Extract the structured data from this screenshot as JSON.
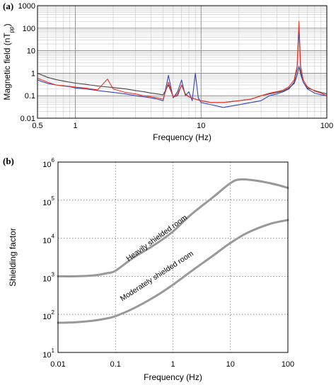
{
  "chart_data": [
    {
      "panel_label": "(a)",
      "type": "line",
      "xlabel": "Frequency (Hz)",
      "ylabel_main": "Magnetic field (nT",
      "ylabel_sub": "pp",
      "ylabel_end": ")",
      "xscale": "log",
      "yscale": "log",
      "xlim": [
        0.5,
        100
      ],
      "ylim": [
        0.01,
        1000
      ],
      "x_ticks": [
        {
          "value": 0.5,
          "label": "0.5"
        },
        {
          "value": 1,
          "label": "1"
        },
        {
          "value": 10,
          "label": "10"
        },
        {
          "value": 100,
          "label": "100"
        }
      ],
      "y_ticks": [
        {
          "value": 0.01,
          "label": "0.01"
        },
        {
          "value": 0.1,
          "label": "0.1"
        },
        {
          "value": 1,
          "label": "1"
        },
        {
          "value": 10,
          "label": "10"
        },
        {
          "value": 100,
          "label": "100"
        },
        {
          "value": 1000,
          "label": "1000"
        }
      ],
      "grid": true,
      "series": [
        {
          "color": "#444444",
          "points": [
            [
              0.5,
              1.0
            ],
            [
              0.6,
              0.65
            ],
            [
              0.7,
              0.52
            ],
            [
              0.8,
              0.45
            ],
            [
              0.9,
              0.4
            ],
            [
              1.0,
              0.36
            ],
            [
              1.2,
              0.32
            ],
            [
              1.5,
              0.27
            ],
            [
              2.0,
              0.23
            ],
            [
              2.5,
              0.2
            ],
            [
              3.0,
              0.17
            ],
            [
              3.5,
              0.15
            ],
            [
              4.0,
              0.13
            ],
            [
              4.5,
              0.12
            ],
            [
              5.0,
              0.11
            ],
            [
              5.5,
              0.3
            ],
            [
              6.0,
              0.09
            ],
            [
              6.5,
              0.1
            ],
            [
              7.0,
              0.3
            ],
            [
              7.5,
              0.12
            ],
            [
              8.0,
              0.09
            ],
            [
              9.0,
              0.07
            ],
            [
              10,
              0.06
            ],
            [
              12,
              0.05
            ],
            [
              15,
              0.05
            ],
            [
              20,
              0.06
            ],
            [
              25,
              0.07
            ],
            [
              30,
              0.1
            ],
            [
              35,
              0.12
            ],
            [
              40,
              0.14
            ],
            [
              45,
              0.16
            ],
            [
              50,
              0.22
            ],
            [
              55,
              0.35
            ],
            [
              58,
              0.8
            ],
            [
              60,
              2.0
            ],
            [
              62,
              0.9
            ],
            [
              65,
              0.4
            ],
            [
              70,
              0.22
            ],
            [
              80,
              0.17
            ],
            [
              90,
              0.14
            ],
            [
              100,
              0.12
            ]
          ]
        },
        {
          "color": "#3344bb",
          "points": [
            [
              0.5,
              0.5
            ],
            [
              0.6,
              0.35
            ],
            [
              0.7,
              0.3
            ],
            [
              0.8,
              0.27
            ],
            [
              0.9,
              0.25
            ],
            [
              1.0,
              0.22
            ],
            [
              1.2,
              0.2
            ],
            [
              1.5,
              0.17
            ],
            [
              2.0,
              0.14
            ],
            [
              2.5,
              0.12
            ],
            [
              3.0,
              0.1
            ],
            [
              3.5,
              0.09
            ],
            [
              4.0,
              0.08
            ],
            [
              4.5,
              0.07
            ],
            [
              5.0,
              0.06
            ],
            [
              5.5,
              0.8
            ],
            [
              6.0,
              0.08
            ],
            [
              6.5,
              0.15
            ],
            [
              7.0,
              0.5
            ],
            [
              7.5,
              0.1
            ],
            [
              8.0,
              0.15
            ],
            [
              8.5,
              0.06
            ],
            [
              9.0,
              1.0
            ],
            [
              9.5,
              0.08
            ],
            [
              10,
              0.05
            ],
            [
              12,
              0.04
            ],
            [
              15,
              0.03
            ],
            [
              20,
              0.04
            ],
            [
              25,
              0.05
            ],
            [
              30,
              0.06
            ],
            [
              35,
              0.1
            ],
            [
              40,
              0.12
            ],
            [
              45,
              0.15
            ],
            [
              50,
              0.2
            ],
            [
              55,
              0.4
            ],
            [
              58,
              1.5
            ],
            [
              60,
              100
            ],
            [
              62,
              1.2
            ],
            [
              65,
              0.4
            ],
            [
              70,
              0.2
            ],
            [
              80,
              0.13
            ],
            [
              90,
              0.11
            ],
            [
              100,
              0.1
            ]
          ]
        },
        {
          "color": "#ee3322",
          "points": [
            [
              0.5,
              0.6
            ],
            [
              0.6,
              0.4
            ],
            [
              0.7,
              0.3
            ],
            [
              0.8,
              0.28
            ],
            [
              0.9,
              0.26
            ],
            [
              1.0,
              0.24
            ],
            [
              1.2,
              0.22
            ],
            [
              1.5,
              0.18
            ],
            [
              1.8,
              0.55
            ],
            [
              2.0,
              0.2
            ],
            [
              2.5,
              0.14
            ],
            [
              3.0,
              0.12
            ],
            [
              3.5,
              0.1
            ],
            [
              4.0,
              0.09
            ],
            [
              4.5,
              0.08
            ],
            [
              5.0,
              0.07
            ],
            [
              5.5,
              0.4
            ],
            [
              6.0,
              0.09
            ],
            [
              6.5,
              0.12
            ],
            [
              7.0,
              0.3
            ],
            [
              7.5,
              0.11
            ],
            [
              8.0,
              0.09
            ],
            [
              9.0,
              0.07
            ],
            [
              10,
              0.06
            ],
            [
              12,
              0.05
            ],
            [
              15,
              0.05
            ],
            [
              20,
              0.06
            ],
            [
              25,
              0.07
            ],
            [
              30,
              0.1
            ],
            [
              35,
              0.13
            ],
            [
              40,
              0.15
            ],
            [
              45,
              0.18
            ],
            [
              50,
              0.25
            ],
            [
              55,
              0.5
            ],
            [
              58,
              2.0
            ],
            [
              60,
              200
            ],
            [
              62,
              2.0
            ],
            [
              65,
              0.5
            ],
            [
              70,
              0.25
            ],
            [
              80,
              0.16
            ],
            [
              90,
              0.13
            ],
            [
              100,
              0.1
            ]
          ]
        }
      ]
    },
    {
      "panel_label": "(b)",
      "type": "line",
      "xlabel": "Frequency (Hz)",
      "ylabel": "Shielding factor",
      "xscale": "log",
      "yscale": "log",
      "xlim": [
        0.01,
        100
      ],
      "ylim": [
        10,
        1000000
      ],
      "x_ticks": [
        {
          "value": 0.01,
          "label": "0.01"
        },
        {
          "value": 0.1,
          "label": "0.1"
        },
        {
          "value": 1,
          "label": "1"
        },
        {
          "value": 10,
          "label": "10"
        },
        {
          "value": 100,
          "label": "100"
        }
      ],
      "y_ticks": [
        {
          "value": 10,
          "base": "10",
          "exp": "1"
        },
        {
          "value": 100,
          "base": "10",
          "exp": "2"
        },
        {
          "value": 1000,
          "base": "10",
          "exp": "3"
        },
        {
          "value": 10000,
          "base": "10",
          "exp": "4"
        },
        {
          "value": 100000,
          "base": "10",
          "exp": "5"
        },
        {
          "value": 1000000,
          "base": "10",
          "exp": "6"
        }
      ],
      "grid": "dotted",
      "series": [
        {
          "color": "#999999",
          "points": [
            [
              0.01,
              1000
            ],
            [
              0.02,
              1000
            ],
            [
              0.04,
              1050
            ],
            [
              0.07,
              1200
            ],
            [
              0.1,
              1400
            ],
            [
              0.2,
              3000
            ],
            [
              0.5,
              7000
            ],
            [
              1,
              15000
            ],
            [
              2,
              40000
            ],
            [
              5,
              120000
            ],
            [
              10,
              280000
            ],
            [
              15,
              350000
            ],
            [
              30,
              320000
            ],
            [
              60,
              260000
            ],
            [
              100,
              210000
            ]
          ]
        },
        {
          "color": "#999999",
          "points": [
            [
              0.01,
              60
            ],
            [
              0.02,
              62
            ],
            [
              0.04,
              68
            ],
            [
              0.07,
              78
            ],
            [
              0.1,
              90
            ],
            [
              0.2,
              140
            ],
            [
              0.5,
              300
            ],
            [
              1,
              600
            ],
            [
              2,
              1300
            ],
            [
              5,
              3500
            ],
            [
              10,
              7500
            ],
            [
              20,
              14000
            ],
            [
              50,
              24000
            ],
            [
              100,
              30000
            ]
          ]
        }
      ],
      "annotations": [
        {
          "text": "Heavily shielded room",
          "x": 0.55,
          "y": 9000,
          "angle": -36
        },
        {
          "text": "Moderately shielded room",
          "x": 0.55,
          "y": 900,
          "angle": -33
        }
      ]
    }
  ]
}
